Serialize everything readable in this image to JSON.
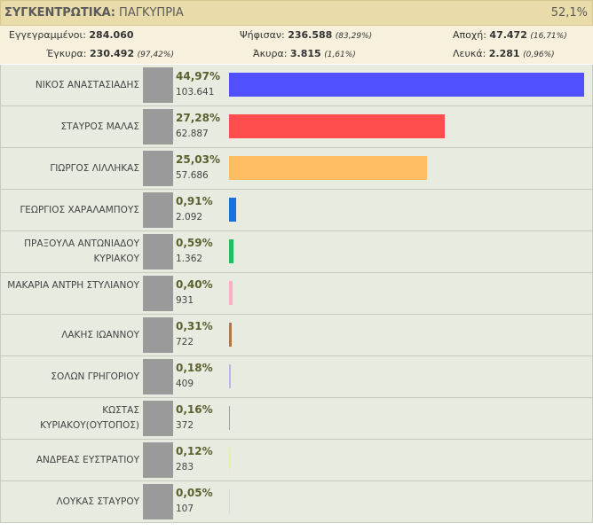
{
  "header": {
    "title": "ΣΥΓΚΕΝΤΡΩΤΙΚΑ:",
    "region": "ΠΑΓΚΥΠΡΙΑ",
    "counted": "52,1%"
  },
  "summary": [
    [
      {
        "label": "Εγγεγραμμένοι:",
        "value": "284.060"
      },
      {
        "label": "Ψήφισαν:",
        "value": "236.588",
        "pct": "(83,29%)"
      },
      {
        "label": "Αποχή:",
        "value": "47.472",
        "pct": "(16,71%)"
      }
    ],
    [
      {
        "label": "Έγκυρα:",
        "value": "230.492",
        "pct": "(97,42%)"
      },
      {
        "label": "Άκυρα:",
        "value": "3.815",
        "pct": "(1,61%)"
      },
      {
        "label": "Λευκά:",
        "value": "2.281",
        "pct": "(0,96%)"
      }
    ]
  ],
  "candidates": [
    {
      "name": "ΝΙΚΟΣ ΑΝΑΣΤΑΣΙΑΔΗΣ",
      "percent": 44.97,
      "percent_label": "44,97%",
      "votes": "103.641",
      "color": "#5050ff"
    },
    {
      "name": "ΣΤΑΥΡΟΣ ΜΑΛΑΣ",
      "percent": 27.28,
      "percent_label": "27,28%",
      "votes": "62.887",
      "color": "#ff4c4c"
    },
    {
      "name": "ΓΙΩΡΓΟΣ ΛΙΛΛΗΚΑΣ",
      "percent": 25.03,
      "percent_label": "25,03%",
      "votes": "57.686",
      "color": "#ffbe64"
    },
    {
      "name": "ΓΕΩΡΓΙΟΣ ΧΑΡΑΛΑΜΠΟΥΣ",
      "percent": 0.91,
      "percent_label": "0,91%",
      "votes": "2.092",
      "color": "#1a6fdc"
    },
    {
      "name": "ΠΡΑΞΟΥΛΑ ΑΝΤΩΝΙΑΔΟΥ ΚΥΡΙΑΚΟΥ",
      "percent": 0.59,
      "percent_label": "0,59%",
      "votes": "1.362",
      "color": "#1fc060"
    },
    {
      "name": "ΜΑΚΑΡΙΑ ΑΝΤΡΗ ΣΤΥΛΙΑΝΟΥ",
      "percent": 0.4,
      "percent_label": "0,40%",
      "votes": "931",
      "color": "#ffb0c8"
    },
    {
      "name": "ΛΑΚΗΣ ΙΩΑΝΝΟΥ",
      "percent": 0.31,
      "percent_label": "0,31%",
      "votes": "722",
      "color": "#b07850"
    },
    {
      "name": "ΣΟΛΩΝ ΓΡΗΓΟΡΙΟΥ",
      "percent": 0.18,
      "percent_label": "0,18%",
      "votes": "409",
      "color": "#b8b8e8"
    },
    {
      "name": "ΚΩΣΤΑΣ ΚΥΡΙΑΚΟΥ(ΟΥΤΟΠΟΣ)",
      "percent": 0.16,
      "percent_label": "0,16%",
      "votes": "372",
      "color": "#a0a0a0"
    },
    {
      "name": "ΑΝΔΡΕΑΣ ΕΥΣΤΡΑΤΙΟΥ",
      "percent": 0.12,
      "percent_label": "0,12%",
      "votes": "283",
      "color": "#f0e8b0"
    },
    {
      "name": "ΛΟΥΚΑΣ ΣΤΑΥΡΟΥ",
      "percent": 0.05,
      "percent_label": "0,05%",
      "votes": "107",
      "color": "#d8d8d8"
    }
  ]
}
